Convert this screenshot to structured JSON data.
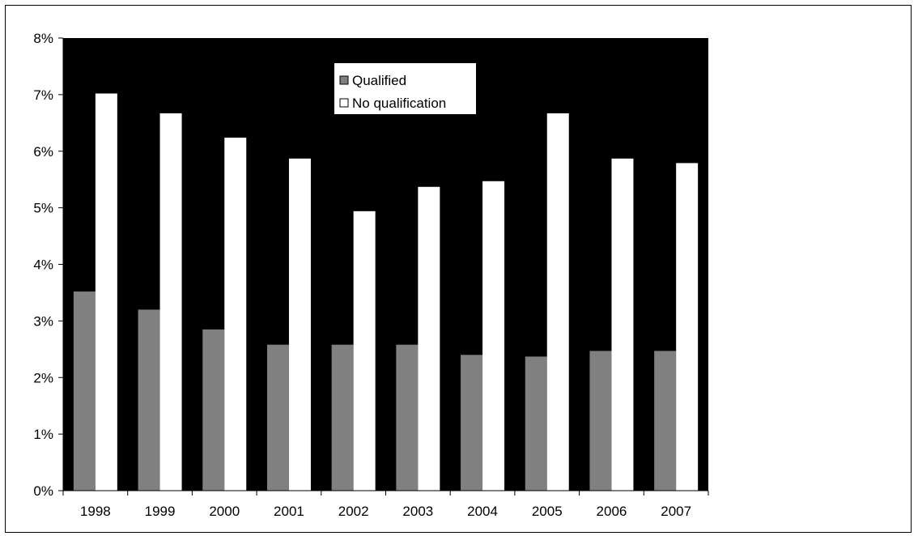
{
  "chart_data": {
    "type": "bar",
    "title": "",
    "xlabel": "",
    "ylabel": "",
    "categories": [
      "1998",
      "1999",
      "2000",
      "2001",
      "2002",
      "2003",
      "2004",
      "2005",
      "2006",
      "2007"
    ],
    "series": [
      {
        "name": "Qualified",
        "color": "#808080",
        "values": [
          3.52,
          3.2,
          2.85,
          2.58,
          2.58,
          2.58,
          2.4,
          2.37,
          2.47,
          2.47
        ]
      },
      {
        "name": "No qualification",
        "color": "#ffffff",
        "values": [
          7.02,
          6.67,
          6.24,
          5.87,
          4.94,
          5.37,
          5.47,
          6.67,
          5.87,
          5.79
        ]
      }
    ],
    "ylim": [
      0,
      8
    ],
    "y_ticks": [
      "0%",
      "1%",
      "2%",
      "3%",
      "4%",
      "5%",
      "6%",
      "7%",
      "8%"
    ],
    "plot_background": "#000000",
    "grid": false,
    "legend_position": "top-center"
  }
}
